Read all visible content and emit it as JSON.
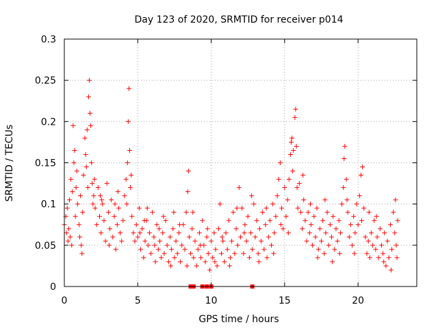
{
  "chart_data": {
    "type": "scatter",
    "title": "Day 123 of 2020, SRMTID for receiver p014",
    "xlabel": "GPS time / hours",
    "ylabel": "SRMTID / TECUs",
    "xlim": [
      0,
      24
    ],
    "ylim": [
      0,
      0.3
    ],
    "x_ticks": [
      {
        "value": 0,
        "label": "0"
      },
      {
        "value": 5,
        "label": "5"
      },
      {
        "value": 10,
        "label": "10"
      },
      {
        "value": 15,
        "label": "15"
      },
      {
        "value": 20,
        "label": "20"
      }
    ],
    "y_ticks": [
      {
        "value": 0,
        "label": "0"
      },
      {
        "value": 0.05,
        "label": "0.05"
      },
      {
        "value": 0.1,
        "label": "0.1"
      },
      {
        "value": 0.15,
        "label": "0.15"
      },
      {
        "value": 0.2,
        "label": "0.2"
      },
      {
        "value": 0.25,
        "label": "0.25"
      },
      {
        "value": 0.3,
        "label": "0.3"
      }
    ],
    "grid": true,
    "marker": "plus",
    "color": "#ff0000",
    "series": [
      {
        "name": "p014",
        "points": [
          [
            0.0,
            0.075
          ],
          [
            0.1,
            0.085
          ],
          [
            0.15,
            0.065
          ],
          [
            0.2,
            0.095
          ],
          [
            0.3,
            0.07
          ],
          [
            0.35,
            0.105
          ],
          [
            0.4,
            0.06
          ],
          [
            0.45,
            0.13
          ],
          [
            0.5,
            0.05
          ],
          [
            0.55,
            0.115
          ],
          [
            0.6,
            0.195
          ],
          [
            0.65,
            0.15
          ],
          [
            0.7,
            0.165
          ],
          [
            0.75,
            0.085
          ],
          [
            0.8,
            0.12
          ],
          [
            0.9,
            0.1
          ],
          [
            1.0,
            0.075
          ],
          [
            1.05,
            0.06
          ],
          [
            1.1,
            0.11
          ],
          [
            1.2,
            0.04
          ],
          [
            1.25,
            0.09
          ],
          [
            1.3,
            0.135
          ],
          [
            1.4,
            0.18
          ],
          [
            1.45,
            0.16
          ],
          [
            1.5,
            0.145
          ],
          [
            1.55,
            0.19
          ],
          [
            1.6,
            0.12
          ],
          [
            1.65,
            0.23
          ],
          [
            1.7,
            0.25
          ],
          [
            1.75,
            0.21
          ],
          [
            1.8,
            0.195
          ],
          [
            1.85,
            0.15
          ],
          [
            1.9,
            0.125
          ],
          [
            2.0,
            0.11
          ],
          [
            2.1,
            0.095
          ],
          [
            2.2,
            0.075
          ],
          [
            2.3,
            0.12
          ],
          [
            2.4,
            0.085
          ],
          [
            2.5,
            0.065
          ],
          [
            2.6,
            0.1
          ],
          [
            2.7,
            0.08
          ],
          [
            2.8,
            0.055
          ],
          [
            2.9,
            0.125
          ],
          [
            3.0,
            0.09
          ],
          [
            3.1,
            0.07
          ],
          [
            3.2,
            0.105
          ],
          [
            3.3,
            0.06
          ],
          [
            3.4,
            0.085
          ],
          [
            3.5,
            0.045
          ],
          [
            3.6,
            0.075
          ],
          [
            3.7,
            0.095
          ],
          [
            3.8,
            0.065
          ],
          [
            3.9,
            0.055
          ],
          [
            4.0,
            0.08
          ],
          [
            4.1,
            0.11
          ],
          [
            4.2,
            0.13
          ],
          [
            4.3,
            0.15
          ],
          [
            4.35,
            0.2
          ],
          [
            4.4,
            0.24
          ],
          [
            4.45,
            0.165
          ],
          [
            4.5,
            0.12
          ],
          [
            4.6,
            0.085
          ],
          [
            4.7,
            0.065
          ],
          [
            4.8,
            0.055
          ],
          [
            4.9,
            0.075
          ],
          [
            5.0,
            0.06
          ],
          [
            5.1,
            0.095
          ],
          [
            5.2,
            0.045
          ],
          [
            5.3,
            0.07
          ],
          [
            5.4,
            0.035
          ],
          [
            5.5,
            0.055
          ],
          [
            5.6,
            0.08
          ],
          [
            5.7,
            0.05
          ],
          [
            5.8,
            0.065
          ],
          [
            5.9,
            0.04
          ],
          [
            6.0,
            0.09
          ],
          [
            6.1,
            0.06
          ],
          [
            6.2,
            0.03
          ],
          [
            6.3,
            0.075
          ],
          [
            6.4,
            0.045
          ],
          [
            6.5,
            0.055
          ],
          [
            6.6,
            0.035
          ],
          [
            6.7,
            0.065
          ],
          [
            6.8,
            0.04
          ],
          [
            6.9,
            0.08
          ],
          [
            7.0,
            0.05
          ],
          [
            7.1,
            0.03
          ],
          [
            7.2,
            0.06
          ],
          [
            7.3,
            0.045
          ],
          [
            7.4,
            0.07
          ],
          [
            7.5,
            0.035
          ],
          [
            7.6,
            0.055
          ],
          [
            7.7,
            0.04
          ],
          [
            7.8,
            0.065
          ],
          [
            7.9,
            0.03
          ],
          [
            8.0,
            0.05
          ],
          [
            8.1,
            0.075
          ],
          [
            8.2,
            0.045
          ],
          [
            8.3,
            0.09
          ],
          [
            8.4,
            0.115
          ],
          [
            8.45,
            0.14
          ],
          [
            8.5,
            0.06
          ],
          [
            8.6,
            0.04
          ],
          [
            8.7,
            0.07
          ],
          [
            8.8,
            0.035
          ],
          [
            8.9,
            0.055
          ],
          [
            9.0,
            0.025
          ],
          [
            9.1,
            0.045
          ],
          [
            9.2,
            0.065
          ],
          [
            9.3,
            0.035
          ],
          [
            9.4,
            0.08
          ],
          [
            9.5,
            0.05
          ],
          [
            9.6,
            0.03
          ],
          [
            9.7,
            0.06
          ],
          [
            9.8,
            0.04
          ],
          [
            9.9,
            0.02
          ],
          [
            10.0,
            0.055
          ],
          [
            10.1,
            0.035
          ],
          [
            10.2,
            0.065
          ],
          [
            10.3,
            0.045
          ],
          [
            10.4,
            0.025
          ],
          [
            10.5,
            0.07
          ],
          [
            10.6,
            0.1
          ],
          [
            10.7,
            0.04
          ],
          [
            10.8,
            0.055
          ],
          [
            10.9,
            0.03
          ],
          [
            11.0,
            0.065
          ],
          [
            11.1,
            0.045
          ],
          [
            11.2,
            0.08
          ],
          [
            11.3,
            0.035
          ],
          [
            11.4,
            0.055
          ],
          [
            11.5,
            0.09
          ],
          [
            11.6,
            0.04
          ],
          [
            11.7,
            0.07
          ],
          [
            11.8,
            0.05
          ],
          [
            11.9,
            0.12
          ],
          [
            12.0,
            0.06
          ],
          [
            12.1,
            0.095
          ],
          [
            12.2,
            0.04
          ],
          [
            12.3,
            0.075
          ],
          [
            12.4,
            0.055
          ],
          [
            12.5,
            0.085
          ],
          [
            12.6,
            0.035
          ],
          [
            12.7,
            0.065
          ],
          [
            12.8,
            0.045
          ],
          [
            12.9,
            0.1
          ],
          [
            13.0,
            0.06
          ],
          [
            13.1,
            0.08
          ],
          [
            13.2,
            0.04
          ],
          [
            13.3,
            0.07
          ],
          [
            13.4,
            0.055
          ],
          [
            13.5,
            0.09
          ],
          [
            13.6,
            0.045
          ],
          [
            13.7,
            0.075
          ],
          [
            13.8,
            0.035
          ],
          [
            13.9,
            0.06
          ],
          [
            14.0,
            0.08
          ],
          [
            14.1,
            0.05
          ],
          [
            14.2,
            0.1
          ],
          [
            14.3,
            0.065
          ],
          [
            14.4,
            0.085
          ],
          [
            14.5,
            0.11
          ],
          [
            14.6,
            0.13
          ],
          [
            14.7,
            0.15
          ],
          [
            14.8,
            0.095
          ],
          [
            14.9,
            0.07
          ],
          [
            15.0,
            0.12
          ],
          [
            15.1,
            0.085
          ],
          [
            15.2,
            0.105
          ],
          [
            15.3,
            0.13
          ],
          [
            15.4,
            0.16
          ],
          [
            15.45,
            0.175
          ],
          [
            15.5,
            0.18
          ],
          [
            15.55,
            0.14
          ],
          [
            15.6,
            0.165
          ],
          [
            15.7,
            0.205
          ],
          [
            15.75,
            0.215
          ],
          [
            15.8,
            0.17
          ],
          [
            15.85,
            0.12
          ],
          [
            15.9,
            0.095
          ],
          [
            16.0,
            0.125
          ],
          [
            16.1,
            0.09
          ],
          [
            16.2,
            0.07
          ],
          [
            16.3,
            0.105
          ],
          [
            16.4,
            0.08
          ],
          [
            16.5,
            0.055
          ],
          [
            16.6,
            0.09
          ],
          [
            16.7,
            0.065
          ],
          [
            16.8,
            0.075
          ],
          [
            16.9,
            0.05
          ],
          [
            17.0,
            0.085
          ],
          [
            17.1,
            0.06
          ],
          [
            17.2,
            0.095
          ],
          [
            17.3,
            0.045
          ],
          [
            17.4,
            0.07
          ],
          [
            17.5,
            0.055
          ],
          [
            17.6,
            0.08
          ],
          [
            17.7,
            0.04
          ],
          [
            17.8,
            0.065
          ],
          [
            17.9,
            0.09
          ],
          [
            18.0,
            0.05
          ],
          [
            18.1,
            0.075
          ],
          [
            18.2,
            0.06
          ],
          [
            18.3,
            0.085
          ],
          [
            18.4,
            0.045
          ],
          [
            18.5,
            0.07
          ],
          [
            18.6,
            0.055
          ],
          [
            18.7,
            0.08
          ],
          [
            18.8,
            0.065
          ],
          [
            18.9,
            0.1
          ],
          [
            19.0,
            0.12
          ],
          [
            19.05,
            0.155
          ],
          [
            19.1,
            0.17
          ],
          [
            19.2,
            0.13
          ],
          [
            19.3,
            0.09
          ],
          [
            19.4,
            0.06
          ],
          [
            19.5,
            0.075
          ],
          [
            19.6,
            0.05
          ],
          [
            19.7,
            0.085
          ],
          [
            19.8,
            0.065
          ],
          [
            19.9,
            0.1
          ],
          [
            20.0,
            0.075
          ],
          [
            20.1,
            0.11
          ],
          [
            20.2,
            0.135
          ],
          [
            20.3,
            0.145
          ],
          [
            20.4,
            0.095
          ],
          [
            20.5,
            0.06
          ],
          [
            20.6,
            0.04
          ],
          [
            20.7,
            0.055
          ],
          [
            20.8,
            0.035
          ],
          [
            20.9,
            0.065
          ],
          [
            21.0,
            0.05
          ],
          [
            21.1,
            0.08
          ],
          [
            21.2,
            0.045
          ],
          [
            21.3,
            0.06
          ],
          [
            21.4,
            0.035
          ],
          [
            21.5,
            0.07
          ],
          [
            21.6,
            0.05
          ],
          [
            21.7,
            0.04
          ],
          [
            21.8,
            0.065
          ],
          [
            21.9,
            0.025
          ],
          [
            22.0,
            0.055
          ],
          [
            22.1,
            0.035
          ],
          [
            22.2,
            0.075
          ],
          [
            22.3,
            0.045
          ],
          [
            22.4,
            0.09
          ],
          [
            22.5,
            0.065
          ],
          [
            22.55,
            0.105
          ],
          [
            22.6,
            0.05
          ],
          [
            22.7,
            0.08
          ],
          [
            0.25,
            0.055
          ],
          [
            0.85,
            0.14
          ],
          [
            1.15,
            0.05
          ],
          [
            2.05,
            0.13
          ],
          [
            2.55,
            0.105
          ],
          [
            3.05,
            0.05
          ],
          [
            3.65,
            0.115
          ],
          [
            4.25,
            0.1
          ],
          [
            4.55,
            0.135
          ],
          [
            5.15,
            0.065
          ],
          [
            5.65,
            0.095
          ],
          [
            6.15,
            0.05
          ],
          [
            6.75,
            0.085
          ],
          [
            7.25,
            0.025
          ],
          [
            7.85,
            0.075
          ],
          [
            8.35,
            0.025
          ],
          [
            8.75,
            0.09
          ],
          [
            9.25,
            0.05
          ],
          [
            9.75,
            0.07
          ],
          [
            10.25,
            0.03
          ],
          [
            10.75,
            0.06
          ],
          [
            11.25,
            0.025
          ],
          [
            11.75,
            0.095
          ],
          [
            12.25,
            0.065
          ],
          [
            12.75,
            0.11
          ],
          [
            13.25,
            0.03
          ],
          [
            13.75,
            0.095
          ],
          [
            14.25,
            0.04
          ],
          [
            14.75,
            0.075
          ],
          [
            15.25,
            0.065
          ],
          [
            16.25,
            0.135
          ],
          [
            16.75,
            0.1
          ],
          [
            17.25,
            0.035
          ],
          [
            17.75,
            0.105
          ],
          [
            18.25,
            0.03
          ],
          [
            18.75,
            0.04
          ],
          [
            19.25,
            0.105
          ],
          [
            19.75,
            0.04
          ],
          [
            20.25,
            0.08
          ],
          [
            20.75,
            0.09
          ],
          [
            21.25,
            0.085
          ],
          [
            21.75,
            0.03
          ],
          [
            22.25,
            0.02
          ],
          [
            22.65,
            0.035
          ],
          [
            1.95,
            0.1
          ],
          [
            2.45,
            0.11
          ],
          [
            3.45,
            0.1
          ],
          [
            5.45,
            0.08
          ],
          [
            6.45,
            0.07
          ],
          [
            7.45,
            0.09
          ]
        ],
        "zero_values_x": [
          8.6,
          8.8,
          9.4,
          9.7,
          10.0,
          12.8
        ]
      }
    ]
  }
}
